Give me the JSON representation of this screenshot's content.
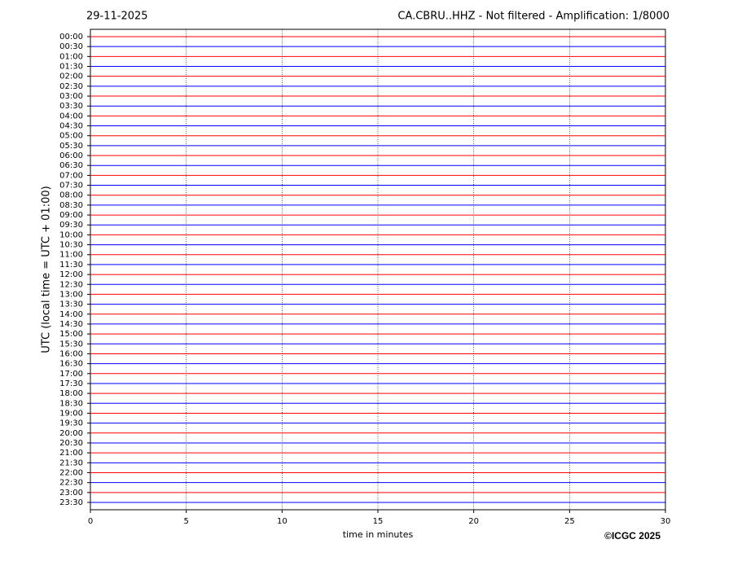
{
  "chart_data": {
    "type": "helicorder",
    "date": "29-11-2025",
    "title": "CA.CBRU..HHZ - Not filtered - Amplification: 1/8000",
    "xlabel": "time in minutes",
    "ylabel": "UTC (local time = UTC + 01:00)",
    "copyright": "©ICGC 2025",
    "categories": [
      "00:00",
      "00:30",
      "01:00",
      "01:30",
      "02:00",
      "02:30",
      "03:00",
      "03:30",
      "04:00",
      "04:30",
      "05:00",
      "05:30",
      "06:00",
      "06:30",
      "07:00",
      "07:30",
      "08:00",
      "08:30",
      "09:00",
      "09:30",
      "10:00",
      "10:30",
      "11:00",
      "11:30",
      "12:00",
      "12:30",
      "13:00",
      "13:30",
      "14:00",
      "14:30",
      "15:00",
      "15:30",
      "16:00",
      "16:30",
      "17:00",
      "17:30",
      "18:00",
      "18:30",
      "19:00",
      "19:30",
      "20:00",
      "20:30",
      "21:00",
      "21:30",
      "22:00",
      "22:30",
      "23:00",
      "23:30"
    ],
    "trace_colors": [
      "#ff0000",
      "#0000ff"
    ],
    "xlim": [
      0,
      30
    ],
    "xticks": [
      0,
      5,
      10,
      15,
      20,
      25,
      30
    ],
    "grid": true
  }
}
